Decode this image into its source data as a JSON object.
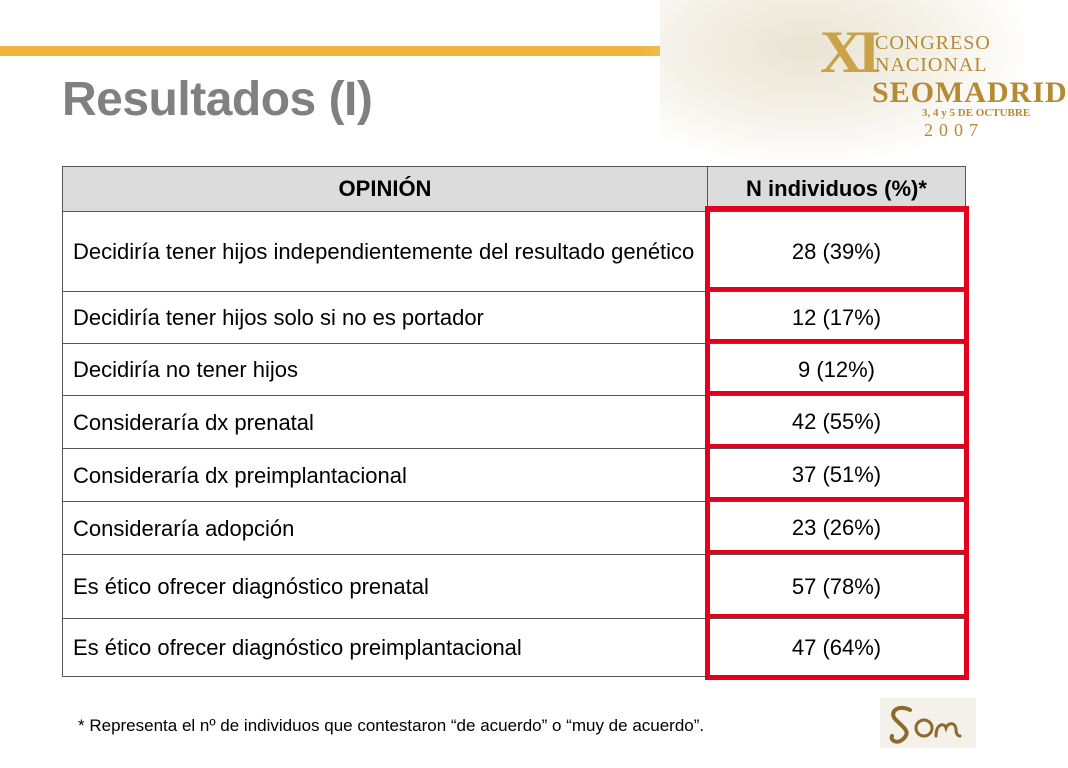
{
  "slide": {
    "title": "Resultados (I)"
  },
  "congress_logo": {
    "numeral": "XI",
    "line1": "CONGRESO",
    "line2": "NACIONAL",
    "line3": "SEOMADRID",
    "line4": "3, 4 y 5 DE OCTUBRE",
    "year": "2007"
  },
  "table": {
    "headers": [
      "OPINIÓN",
      "N individuos (%)*"
    ],
    "rows": [
      {
        "opinion": "Decidiría tener hijos independientemente del resultado genético",
        "n": "28 (39%)"
      },
      {
        "opinion": "Decidiría tener hijos solo si no es portador",
        "n": "12 (17%)"
      },
      {
        "opinion": "Decidiría no tener hijos",
        "n": "9 (12%)"
      },
      {
        "opinion": "Consideraría dx prenatal",
        "n": "42 (55%)"
      },
      {
        "opinion": "Consideraría dx preimplantacional",
        "n": "37 (51%)"
      },
      {
        "opinion": "Consideraría adopción",
        "n": "23 (26%)"
      },
      {
        "opinion": "Es ético ofrecer diagnóstico prenatal",
        "n": "57 (78%)"
      },
      {
        "opinion": "Es ético ofrecer diagnóstico preimplantacional",
        "n": "47 (64%)"
      }
    ]
  },
  "footnote": "* Representa el  nº de individuos que contestaron “de acuerdo” o  “muy de acuerdo”.",
  "colors": {
    "accent_bar": "#f0b43c",
    "title": "#808080",
    "highlight": "#e4001c",
    "header_bg": "#dcdcdc"
  }
}
